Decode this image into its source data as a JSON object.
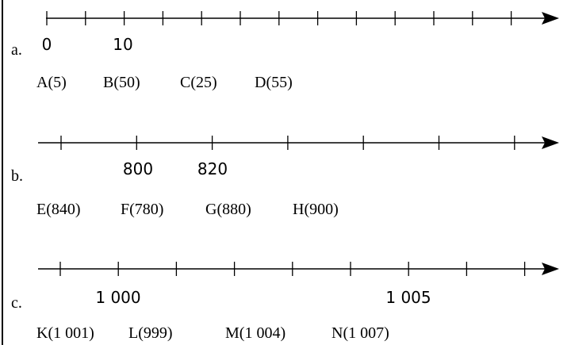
{
  "exercises": [
    {
      "label": "a.",
      "ticks": 13,
      "tick_labels": [
        {
          "index": 0,
          "text": "0"
        },
        {
          "index": 2,
          "text": "10"
        }
      ],
      "points": [
        "A(5)",
        "B(50)",
        "C(25)",
        "D(55)"
      ]
    },
    {
      "label": "b.",
      "ticks": 7,
      "tick_labels": [
        {
          "index": 1,
          "text": "800"
        },
        {
          "index": 2,
          "text": "820"
        }
      ],
      "points": [
        "E(840)",
        "F(780)",
        "G(880)",
        "H(900)"
      ]
    },
    {
      "label": "c.",
      "ticks": 9,
      "tick_labels": [
        {
          "index": 1,
          "text": "1 000"
        },
        {
          "index": 6,
          "text": "1 005"
        }
      ],
      "points": [
        "K(1 001)",
        "L(999)",
        "M(1 004)",
        "N(1 007)"
      ]
    }
  ]
}
